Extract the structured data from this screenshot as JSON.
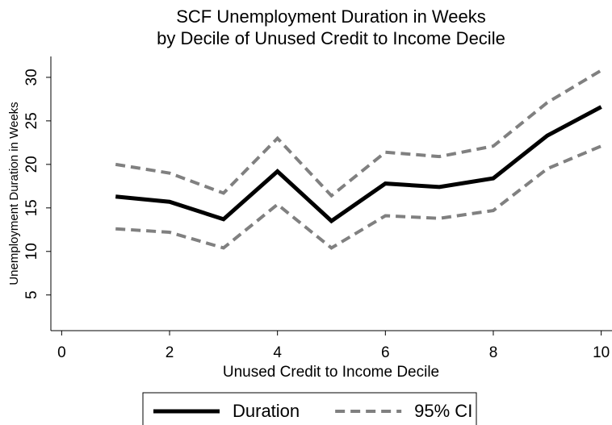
{
  "chart_data": {
    "type": "line",
    "title": [
      "SCF Unemployment Duration in Weeks",
      "by Decile of Unused Credit to Income Decile"
    ],
    "x_label": "Unused Credit to Income Decile",
    "y_label": "Unemployment Duration in Weeks",
    "x": [
      1,
      2,
      3,
      4,
      5,
      6,
      7,
      8,
      9,
      10
    ],
    "series": [
      {
        "name": "Duration",
        "color": "#000000",
        "dash": false,
        "values": [
          16.3,
          15.7,
          13.7,
          19.2,
          13.5,
          17.8,
          17.4,
          18.4,
          23.3,
          26.6
        ]
      },
      {
        "name": "95% CI",
        "color": "#808080",
        "dash": true,
        "values": [
          20.0,
          19.0,
          16.7,
          23.0,
          16.4,
          21.4,
          20.9,
          22.1,
          27.1,
          30.8
        ]
      },
      {
        "color": "#808080",
        "dash": true,
        "values": [
          12.6,
          12.2,
          10.4,
          15.4,
          10.4,
          14.1,
          13.8,
          14.7,
          19.5,
          22.1
        ]
      }
    ],
    "xlim": [
      -0.2,
      10.2
    ],
    "xticks": [
      0,
      2,
      4,
      6,
      8,
      10
    ],
    "ylim": [
      0.9,
      32.4
    ],
    "yticks": [
      5,
      10,
      15,
      20,
      25,
      30
    ],
    "grid": false,
    "legend": "bottom"
  }
}
